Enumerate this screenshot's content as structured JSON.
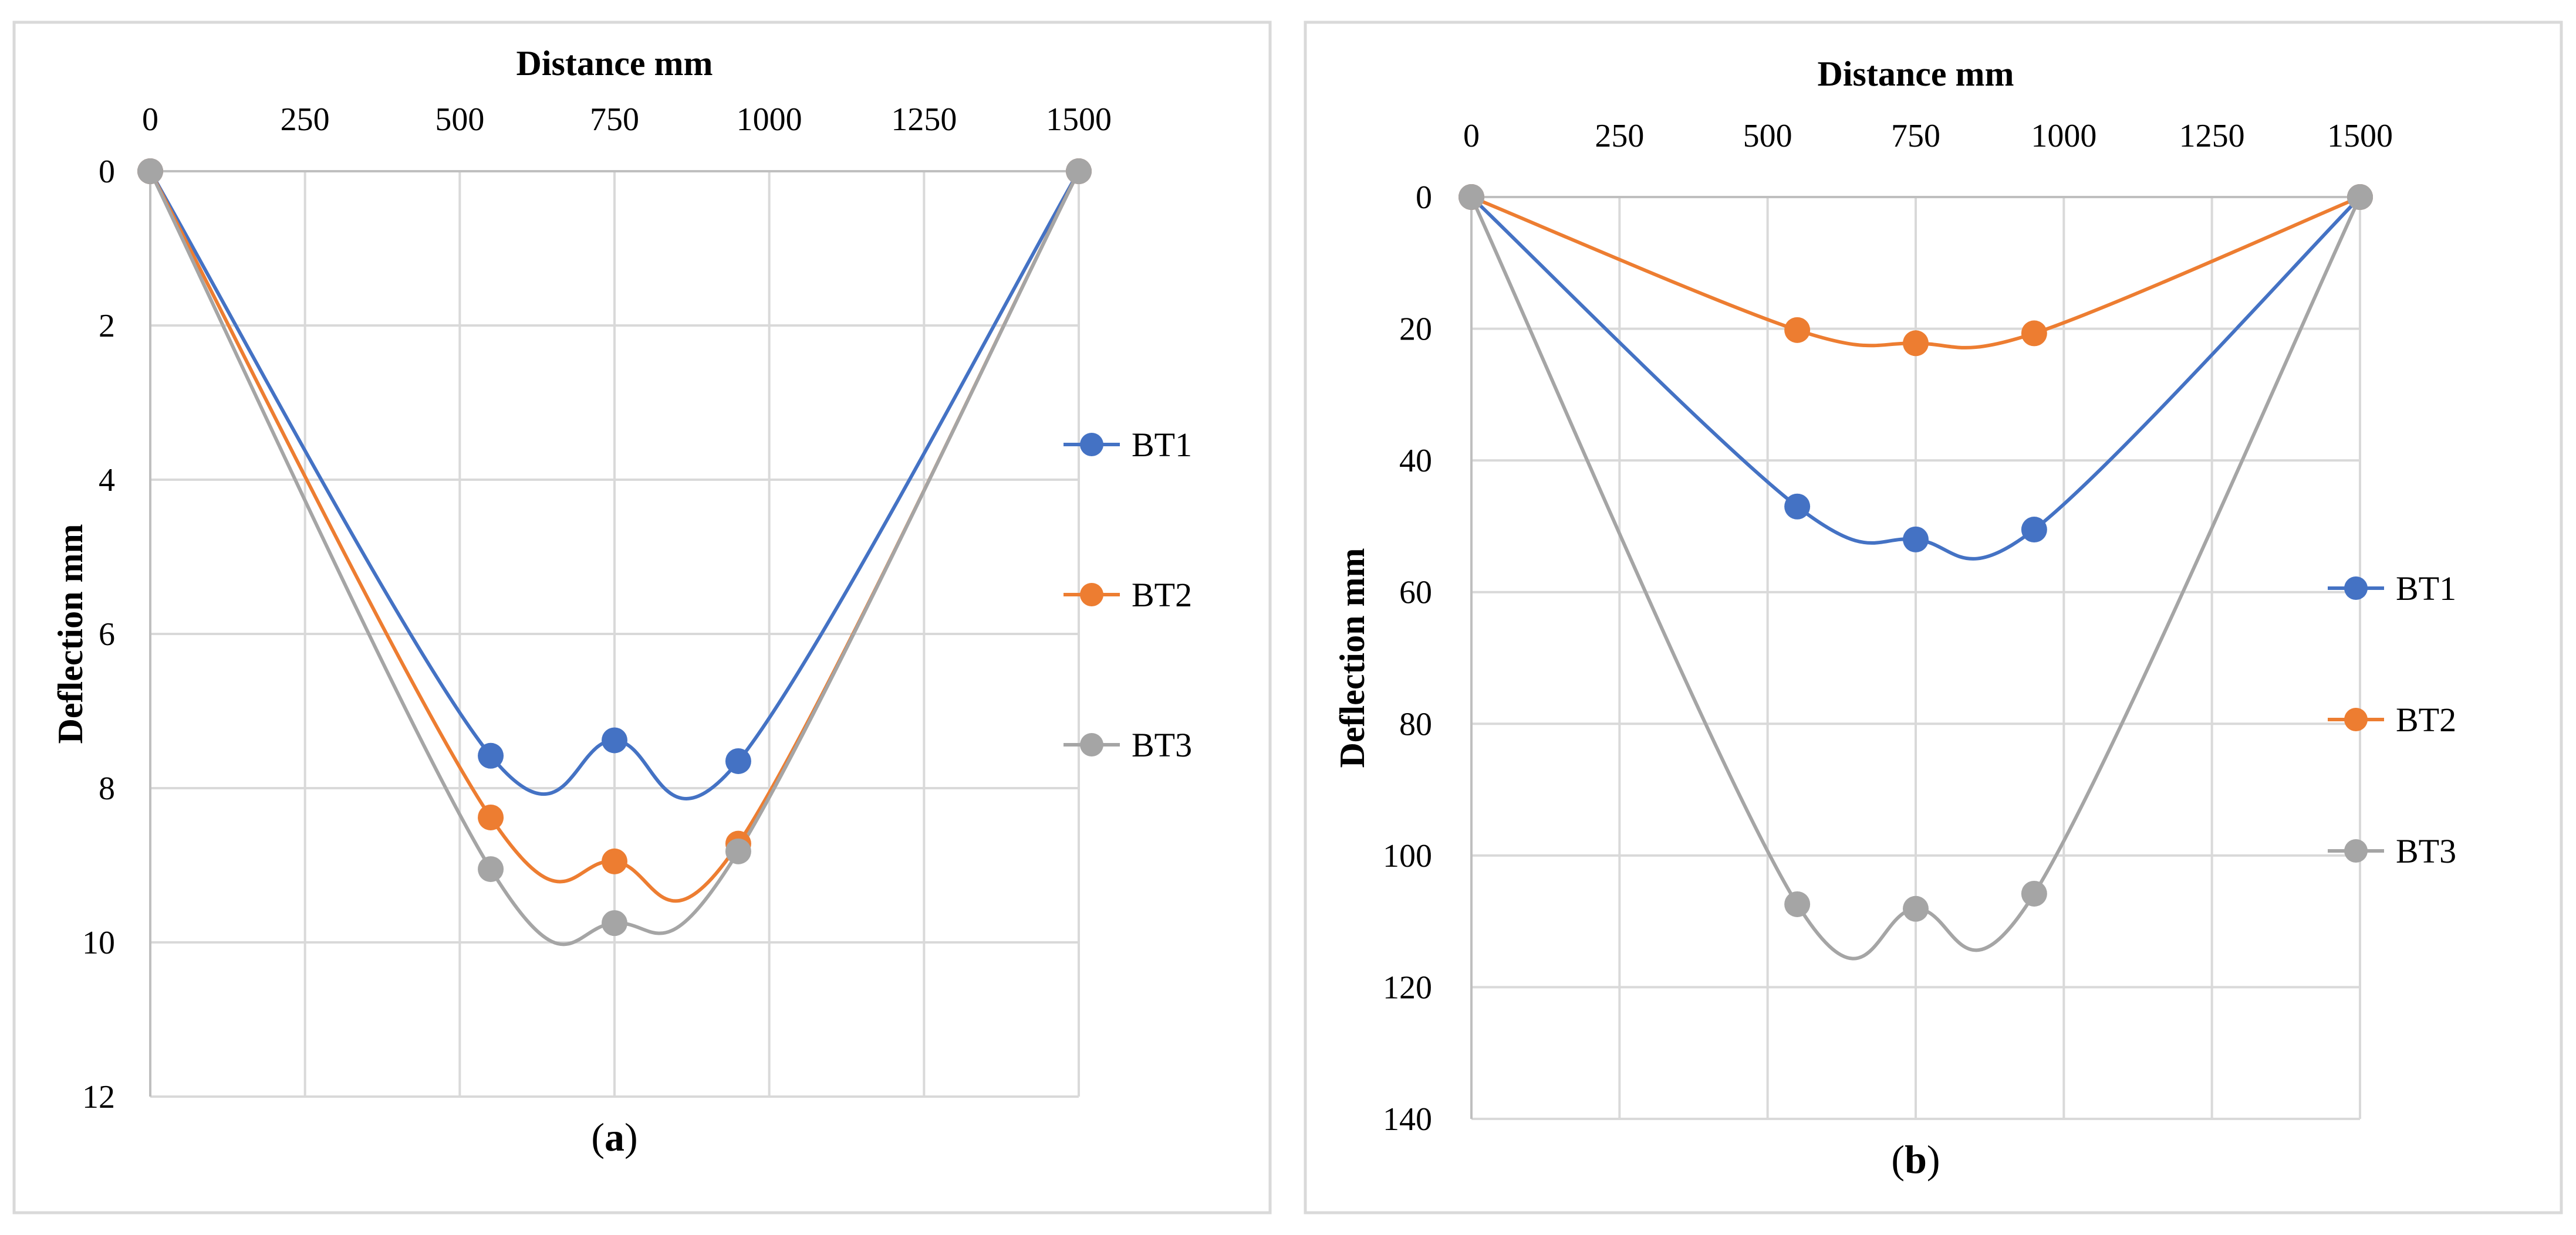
{
  "chart_data": [
    {
      "type": "line",
      "panel_label": "a",
      "xlabel": "Distance mm",
      "ylabel": "Deflection mm",
      "x_axis_position": "top",
      "y_inverted": true,
      "xlim": [
        0,
        1500
      ],
      "ylim": [
        0,
        12
      ],
      "x_ticks": [
        0,
        250,
        500,
        750,
        1000,
        1250,
        1500
      ],
      "y_ticks": [
        0,
        2,
        4,
        6,
        8,
        10,
        12
      ],
      "legend_position": "right",
      "series": [
        {
          "name": "BT1",
          "color": "#4472c4",
          "x": [
            0,
            550,
            750,
            950,
            1500
          ],
          "y": [
            0,
            7.58,
            7.38,
            7.65,
            0
          ]
        },
        {
          "name": "BT2",
          "color": "#ed7d31",
          "x": [
            0,
            550,
            750,
            950,
            1500
          ],
          "y": [
            0,
            8.38,
            8.95,
            8.72,
            0
          ]
        },
        {
          "name": "BT3",
          "color": "#a5a5a5",
          "x": [
            0,
            550,
            750,
            950,
            1500
          ],
          "y": [
            0,
            9.05,
            9.75,
            8.82,
            0
          ]
        }
      ]
    },
    {
      "type": "line",
      "panel_label": "b",
      "xlabel": "Distance mm",
      "ylabel": "Deflection mm",
      "x_axis_position": "top",
      "y_inverted": true,
      "xlim": [
        0,
        1500
      ],
      "ylim": [
        0,
        140
      ],
      "x_ticks": [
        0,
        250,
        500,
        750,
        1000,
        1250,
        1500
      ],
      "y_ticks": [
        0,
        20,
        40,
        60,
        80,
        100,
        120,
        140
      ],
      "legend_position": "right",
      "series": [
        {
          "name": "BT1",
          "color": "#4472c4",
          "x": [
            0,
            550,
            750,
            950,
            1500
          ],
          "y": [
            0,
            47,
            52,
            50.5,
            0
          ]
        },
        {
          "name": "BT2",
          "color": "#ed7d31",
          "x": [
            0,
            550,
            750,
            950,
            1500
          ],
          "y": [
            0,
            20.2,
            22.2,
            20.7,
            0
          ]
        },
        {
          "name": "BT3",
          "color": "#a5a5a5",
          "x": [
            0,
            550,
            750,
            950,
            1500
          ],
          "y": [
            0,
            107.4,
            108.1,
            105.8,
            0
          ]
        }
      ]
    }
  ]
}
